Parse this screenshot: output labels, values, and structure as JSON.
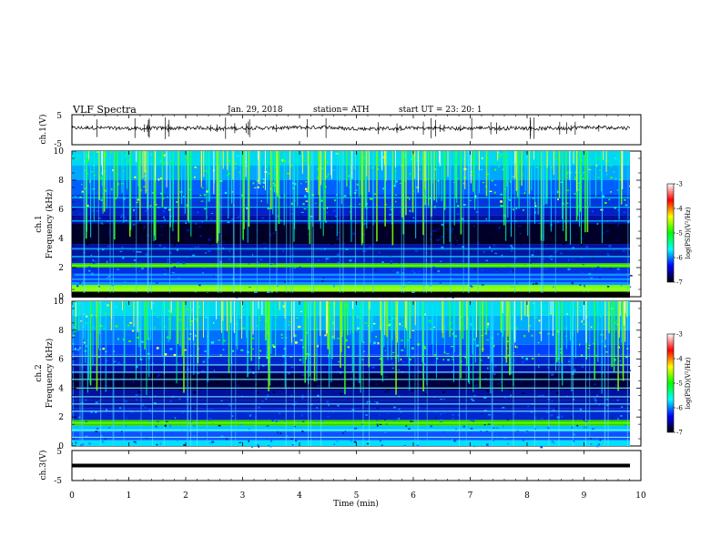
{
  "header": {
    "title": "VLF  Spectra",
    "date": "Jan.  29,  2018",
    "station": "station= ATH",
    "start": "start  UT  =    23: 20: 1"
  },
  "colorbar": {
    "label": "log(PSD)(V²/Hz)",
    "ticks": [
      "-3",
      "-4",
      "-5",
      "-6",
      "-7"
    ],
    "colors": [
      "#ffffff",
      "#ff0000",
      "#ffff00",
      "#00ff00",
      "#00ffff",
      "#0000ff",
      "#000000"
    ]
  },
  "chart_data": [
    {
      "type": "line",
      "name": "ch1-waveform",
      "ylabel": "ch.1(V)",
      "ylim": [
        -5,
        5
      ],
      "yticks": [
        "5",
        "-5"
      ],
      "baseline": 0.5,
      "noise_amplitude": 0.6
    },
    {
      "type": "heatmap",
      "name": "ch1-spectrogram",
      "ylabel": "ch.1\nFrequency  (kHz)",
      "ylim": [
        0,
        10
      ],
      "yticks": [
        "0",
        "2",
        "4",
        "6",
        "8",
        "10"
      ],
      "xlim": [
        0,
        9.8
      ]
    },
    {
      "type": "heatmap",
      "name": "ch2-spectrogram",
      "ylabel": "ch.2\nFrequency  (kHz)",
      "ylim": [
        0,
        10
      ],
      "yticks": [
        "0",
        "2",
        "4",
        "6",
        "8",
        "10"
      ],
      "xlim": [
        0,
        9.8
      ]
    },
    {
      "type": "line",
      "name": "ch3-waveform",
      "ylabel": "ch.3(V)",
      "ylim": [
        -5,
        5
      ],
      "yticks": [
        "5",
        "-5"
      ],
      "baseline": 0,
      "noise_amplitude": 0
    }
  ],
  "xaxis": {
    "label": "Time  (min)",
    "xlim": [
      0,
      10
    ],
    "ticks": [
      "0",
      "1",
      "2",
      "3",
      "4",
      "5",
      "6",
      "7",
      "8",
      "9",
      "10"
    ]
  }
}
